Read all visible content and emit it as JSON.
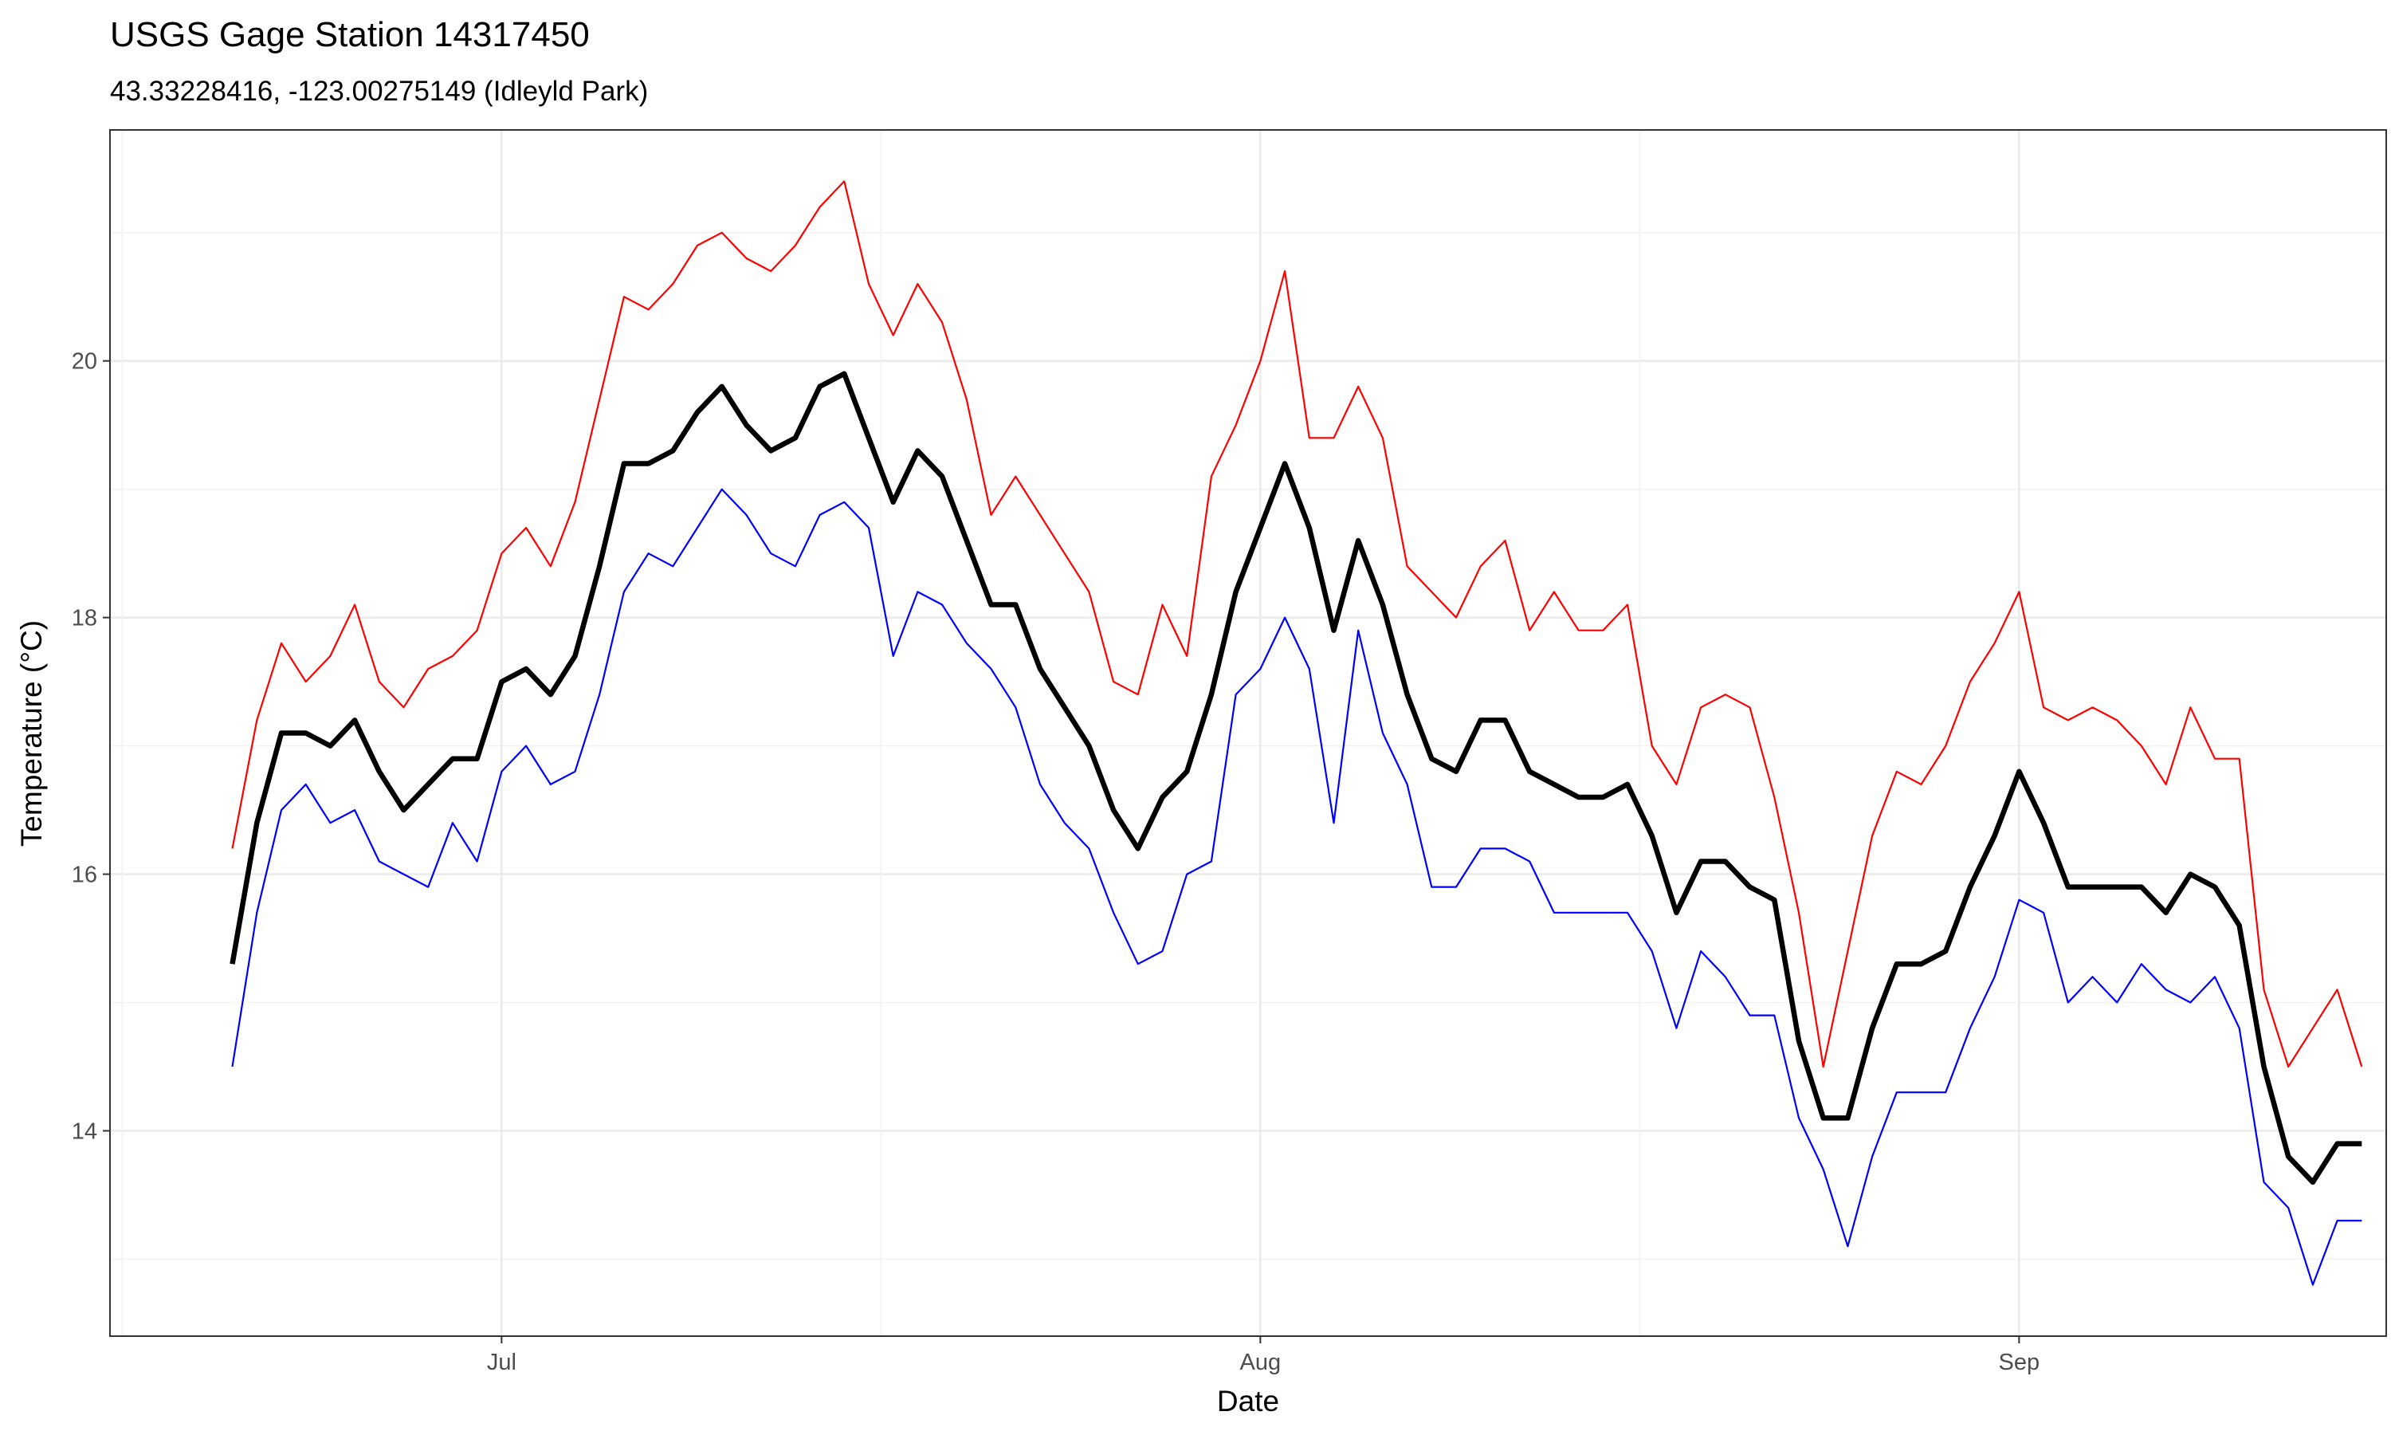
{
  "chart_data": {
    "type": "line",
    "title": "USGS Gage Station 14317450",
    "subtitle": "43.33228416, -123.00275149 (Idleyld Park)",
    "xlabel": "Date",
    "ylabel": "Temperature (°C)",
    "x_start": "2025-06-20",
    "x_ticks": [
      {
        "date": "2025-07-01",
        "label": "Jul"
      },
      {
        "date": "2025-08-01",
        "label": "Aug"
      },
      {
        "date": "2025-09-01",
        "label": "Sep"
      }
    ],
    "y_ticks": [
      14,
      16,
      18,
      20
    ],
    "xlim": [
      "2025-06-15",
      "2025-09-16"
    ],
    "ylim": [
      12.4,
      21.8
    ],
    "grid": true,
    "legend": "none",
    "series": [
      {
        "color": "#ff0000",
        "line_width": "thin",
        "values": [
          16.2,
          17.2,
          17.8,
          17.5,
          17.7,
          18.1,
          17.5,
          17.3,
          17.6,
          17.7,
          17.9,
          18.5,
          18.7,
          18.4,
          18.9,
          19.7,
          20.5,
          20.4,
          20.6,
          20.9,
          21.0,
          20.8,
          20.7,
          20.9,
          21.2,
          21.4,
          20.6,
          20.2,
          20.6,
          20.3,
          19.7,
          18.8,
          19.1,
          18.8,
          18.5,
          18.2,
          17.5,
          17.4,
          18.1,
          17.7,
          19.1,
          19.5,
          20.0,
          20.7,
          19.4,
          19.4,
          19.8,
          19.4,
          18.4,
          18.2,
          18.0,
          18.4,
          18.6,
          17.9,
          18.2,
          17.9,
          17.9,
          18.1,
          17.0,
          16.7,
          17.3,
          17.4,
          17.3,
          16.6,
          15.7,
          14.5,
          15.4,
          16.3,
          16.8,
          16.7,
          17.0,
          17.5,
          17.8,
          18.2,
          17.3,
          17.2,
          17.3,
          17.2,
          17.0,
          16.7,
          17.3,
          16.9,
          16.9,
          15.1,
          14.5,
          14.8,
          15.1,
          14.5
        ]
      },
      {
        "color": "#000000",
        "line_width": "thick",
        "values": [
          15.3,
          16.4,
          17.1,
          17.1,
          17.0,
          17.2,
          16.8,
          16.5,
          16.7,
          16.9,
          16.9,
          17.5,
          17.6,
          17.4,
          17.7,
          18.4,
          19.2,
          19.2,
          19.3,
          19.6,
          19.8,
          19.5,
          19.3,
          19.4,
          19.8,
          19.9,
          19.4,
          18.9,
          19.3,
          19.1,
          18.6,
          18.1,
          18.1,
          17.6,
          17.3,
          17.0,
          16.5,
          16.2,
          16.6,
          16.8,
          17.4,
          18.2,
          18.7,
          19.2,
          18.7,
          17.9,
          18.6,
          18.1,
          17.4,
          16.9,
          16.8,
          17.2,
          17.2,
          16.8,
          16.7,
          16.6,
          16.6,
          16.7,
          16.3,
          15.7,
          16.1,
          16.1,
          15.9,
          15.8,
          14.7,
          14.1,
          14.1,
          14.8,
          15.3,
          15.3,
          15.4,
          15.9,
          16.3,
          16.8,
          16.4,
          15.9,
          15.9,
          15.9,
          15.9,
          15.7,
          16.0,
          15.9,
          15.6,
          14.5,
          13.8,
          13.6,
          13.9,
          13.9
        ]
      },
      {
        "color": "#0000ff",
        "line_width": "thin",
        "values": [
          14.5,
          15.7,
          16.5,
          16.7,
          16.4,
          16.5,
          16.1,
          16.0,
          15.9,
          16.4,
          16.1,
          16.8,
          17.0,
          16.7,
          16.8,
          17.4,
          18.2,
          18.5,
          18.4,
          18.7,
          19.0,
          18.8,
          18.5,
          18.4,
          18.8,
          18.9,
          18.7,
          17.7,
          18.2,
          18.1,
          17.8,
          17.6,
          17.3,
          16.7,
          16.4,
          16.2,
          15.7,
          15.3,
          15.4,
          16.0,
          16.1,
          17.4,
          17.6,
          18.0,
          17.6,
          16.4,
          17.9,
          17.1,
          16.7,
          15.9,
          15.9,
          16.2,
          16.2,
          16.1,
          15.7,
          15.7,
          15.7,
          15.7,
          15.4,
          14.8,
          15.4,
          15.2,
          14.9,
          14.9,
          14.1,
          13.7,
          13.1,
          13.8,
          14.3,
          14.3,
          14.3,
          14.8,
          15.2,
          15.8,
          15.7,
          15.0,
          15.2,
          15.0,
          15.3,
          15.1,
          15.0,
          15.2,
          14.8,
          13.6,
          13.4,
          12.8,
          13.3,
          13.3
        ]
      }
    ]
  }
}
